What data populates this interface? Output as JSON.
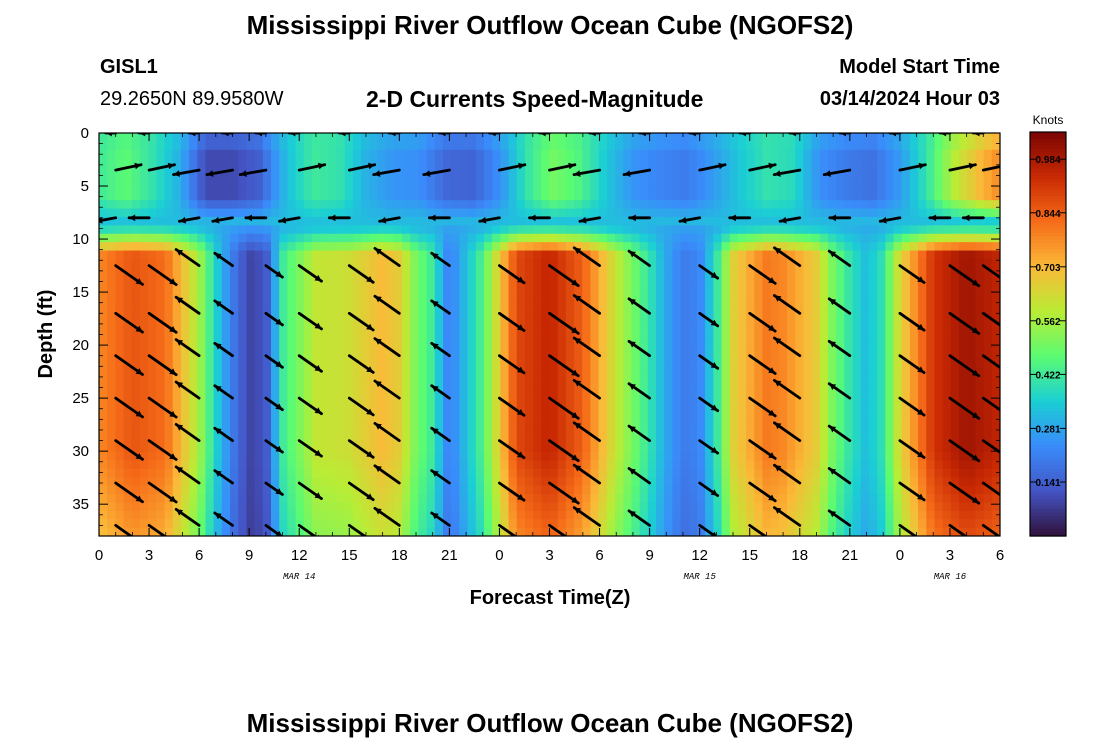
{
  "header": {
    "title": "Mississippi River Outflow Ocean Cube (NGOFS2)",
    "station_id": "GISL1",
    "station_coords": "29.2650N  89.9580W",
    "subtitle": "2-D Currents Speed-Magnitude",
    "model_start_label": "Model Start Time",
    "model_start_value": "03/14/2024 Hour 03"
  },
  "footer": {
    "title": "Mississippi River Outflow Ocean Cube (NGOFS2)"
  },
  "chart_data": {
    "type": "heatmap",
    "xlabel": "Forecast Time(Z)",
    "ylabel": "Depth (ft)",
    "x_range_hours": [
      0,
      54
    ],
    "y_range": [
      0,
      38
    ],
    "x_tick_labels": [
      "0",
      "3",
      "6",
      "9",
      "12",
      "15",
      "18",
      "21",
      "0",
      "3",
      "6",
      "9",
      "12",
      "15",
      "18",
      "21",
      "0",
      "3",
      "6"
    ],
    "y_ticks": [
      0,
      5,
      10,
      15,
      20,
      25,
      30,
      35
    ],
    "date_labels": [
      {
        "label": "MAR 14",
        "hour": 12
      },
      {
        "label": "MAR 15",
        "hour": 36
      },
      {
        "label": "MAR 16",
        "hour": 51
      }
    ],
    "colorbar": {
      "unit": "Knots",
      "range": [
        0.0,
        1.055
      ],
      "tick_values": [
        0.141,
        0.281,
        0.422,
        0.562,
        0.703,
        0.844,
        0.984
      ],
      "colors": [
        "#30123b",
        "#4454c4",
        "#3a8cfb",
        "#1bcfd4",
        "#5bfb72",
        "#b9ec35",
        "#fbb938",
        "#f66c19",
        "#c92903",
        "#7a0403"
      ]
    },
    "speed_time_profile": {
      "hours": [
        0,
        2,
        4,
        6,
        7,
        8,
        9,
        10,
        11,
        13,
        15,
        17,
        18,
        19,
        20,
        21,
        23,
        25,
        27,
        29,
        31,
        33,
        34,
        35,
        36,
        37,
        38,
        40,
        41,
        43,
        44,
        45,
        46,
        47,
        48,
        50,
        52,
        54
      ],
      "lower_speed_knots": [
        0.78,
        0.86,
        0.82,
        0.56,
        0.36,
        0.2,
        0.09,
        0.12,
        0.42,
        0.6,
        0.62,
        0.7,
        0.66,
        0.5,
        0.42,
        0.2,
        0.45,
        0.88,
        0.95,
        0.84,
        0.6,
        0.4,
        0.28,
        0.2,
        0.22,
        0.4,
        0.65,
        0.8,
        0.78,
        0.66,
        0.5,
        0.4,
        0.32,
        0.4,
        0.64,
        0.92,
        1.0,
        0.95
      ]
    },
    "upper_speed_knots": [
      0.42,
      0.47,
      0.4,
      0.3,
      0.1,
      0.1,
      0.14,
      0.32,
      0.42,
      0.4,
      0.3,
      0.25,
      0.24,
      0.16,
      0.15,
      0.24,
      0.4,
      0.5,
      0.45,
      0.34,
      0.25,
      0.22,
      0.2,
      0.26,
      0.34,
      0.4,
      0.38,
      0.24,
      0.2,
      0.18,
      0.26,
      0.4,
      0.58,
      0.7,
      0.8
    ],
    "upper_speed_hours_step": 1.6,
    "arrow_angle_deg_by_phase": {
      "ebb_lower": -35,
      "flood_lower": 145,
      "upper_east": 12,
      "upper_west": 190
    },
    "arrow_hours": [
      1,
      3,
      6,
      8,
      10,
      12,
      15,
      18,
      21,
      24,
      27,
      30,
      33,
      36,
      39,
      42,
      45,
      48,
      51,
      53
    ],
    "arrow_depths_ft": [
      0,
      3.5,
      8,
      12.5,
      17,
      21,
      25,
      29,
      33,
      37
    ]
  }
}
